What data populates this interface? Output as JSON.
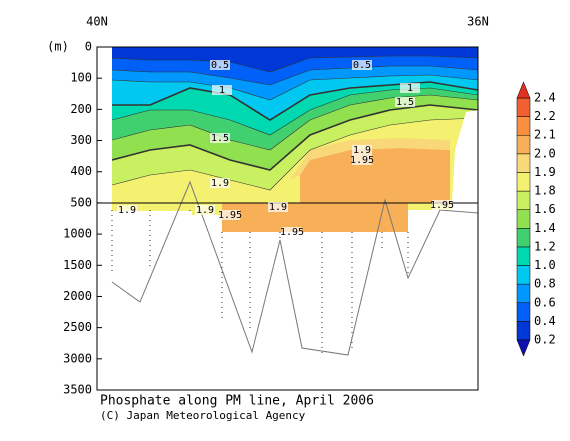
{
  "chart_data": {
    "type": "contour",
    "title": "Phosphate along PM line, April 2006",
    "credit": "(C) Japan Meteorological Agency",
    "y_label": "(m)",
    "x_labels": [
      "40N",
      "36N"
    ],
    "ylim": [
      0,
      3500
    ],
    "yticks": [
      0,
      100,
      200,
      300,
      400,
      500,
      1000,
      1500,
      2000,
      2500,
      3000,
      3500
    ],
    "colorbar": {
      "levels": [
        0.2,
        0.4,
        0.6,
        0.8,
        1.0,
        1.2,
        1.4,
        1.6,
        1.8,
        1.9,
        2.0,
        2.1,
        2.2,
        2.4
      ],
      "colors": [
        "#1010b0",
        "#0038d8",
        "#0060f8",
        "#0098ff",
        "#00c8f0",
        "#00d8b0",
        "#40d070",
        "#90e050",
        "#c8f060",
        "#f4f070",
        "#f8d878",
        "#f8b058",
        "#f89040",
        "#f06030",
        "#e03020"
      ]
    },
    "contour_labels": [
      0.5,
      0.5,
      1,
      1,
      1.5,
      1.5,
      1.9,
      1.95,
      1.9,
      1.9,
      1.9,
      1.95,
      1.9,
      1.95,
      1.95
    ]
  }
}
